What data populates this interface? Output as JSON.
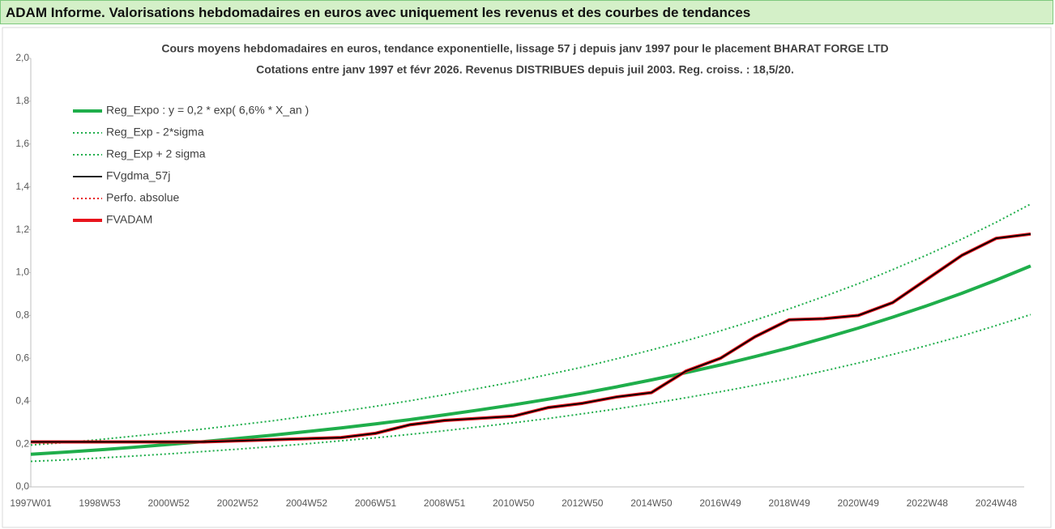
{
  "header": {
    "title": "ADAM Informe. Valorisations hebdomadaires en euros avec uniquement les revenus et des courbes de tendances"
  },
  "chart_data": {
    "type": "line",
    "title": "Cours moyens hebdomadaires en euros, tendance exponentielle, lissage 57 j depuis janv 1997 pour le placement BHARAT FORGE LTD",
    "subtitle": "Cotations entre janv 1997 et févr 2026. Revenus DISTRIBUES depuis juil 2003. Reg. croiss. : 18,5/20.",
    "categories": [
      "1997W01",
      null,
      "1998W53",
      null,
      "2000W52",
      null,
      "2002W52",
      null,
      "2004W52",
      null,
      "2006W51",
      null,
      "2008W51",
      null,
      "2010W50",
      null,
      "2012W50",
      null,
      "2014W50",
      null,
      "2016W49",
      null,
      "2018W49",
      null,
      "2020W49",
      null,
      "2022W48",
      null,
      "2024W48",
      null
    ],
    "ylim": [
      0,
      2
    ],
    "yticks": [
      {
        "value": 0,
        "label": "0,0"
      },
      {
        "value": 0.2,
        "label": "0,2"
      },
      {
        "value": 0.4,
        "label": "0,4"
      },
      {
        "value": 0.6,
        "label": "0,6"
      },
      {
        "value": 0.8,
        "label": "0,8"
      },
      {
        "value": 1,
        "label": "1,0"
      },
      {
        "value": 1.2,
        "label": "1,2"
      },
      {
        "value": 1.4,
        "label": "1,4"
      },
      {
        "value": 1.6,
        "label": "1,6"
      },
      {
        "value": 1.8,
        "label": "1,8"
      },
      {
        "value": 2,
        "label": "2,0"
      }
    ],
    "legend": "top-left",
    "series": [
      {
        "name": "Reg_Expo : y = 0,2 * exp( 6,6% *  X_an )",
        "color": "#1fae4b",
        "line_style": "thick",
        "values": [
          0.152,
          0.162,
          0.173,
          0.185,
          0.198,
          0.211,
          0.226,
          0.241,
          0.258,
          0.275,
          0.294,
          0.314,
          0.336,
          0.359,
          0.383,
          0.409,
          0.437,
          0.467,
          0.499,
          0.533,
          0.569,
          0.608,
          0.649,
          0.694,
          0.741,
          0.792,
          0.846,
          0.903,
          0.965,
          1.031
        ]
      },
      {
        "name": "Reg_Exp - 2*sigma",
        "color": "#1fae4b",
        "line_style": "dotted",
        "values": [
          0.119,
          0.126,
          0.135,
          0.144,
          0.154,
          0.165,
          0.176,
          0.188,
          0.201,
          0.215,
          0.229,
          0.245,
          0.262,
          0.28,
          0.299,
          0.319,
          0.341,
          0.364,
          0.389,
          0.416,
          0.444,
          0.474,
          0.506,
          0.541,
          0.578,
          0.618,
          0.66,
          0.704,
          0.753,
          0.804
        ]
      },
      {
        "name": "Reg_Exp + 2 sigma",
        "color": "#1fae4b",
        "line_style": "dotted",
        "values": [
          0.195,
          0.207,
          0.221,
          0.237,
          0.253,
          0.27,
          0.289,
          0.308,
          0.33,
          0.352,
          0.376,
          0.402,
          0.43,
          0.46,
          0.49,
          0.524,
          0.559,
          0.598,
          0.639,
          0.682,
          0.728,
          0.778,
          0.831,
          0.888,
          0.948,
          1.014,
          1.083,
          1.156,
          1.235,
          1.32
        ]
      },
      {
        "name": "FVgdma_57j",
        "color": "#000000",
        "line_style": "thin",
        "values": [
          0.21,
          0.21,
          0.21,
          0.21,
          0.21,
          0.21,
          0.215,
          0.22,
          0.225,
          0.23,
          0.25,
          0.29,
          0.31,
          0.32,
          0.33,
          0.37,
          0.39,
          0.42,
          0.44,
          0.54,
          0.6,
          0.7,
          0.78,
          0.785,
          0.8,
          0.86,
          0.97,
          1.08,
          1.16,
          1.18
        ]
      },
      {
        "name": "Perfo. absolue",
        "color": "#e8141c",
        "line_style": "dotted",
        "values": [
          0.21,
          0.21,
          0.21,
          0.21,
          0.21,
          0.21,
          0.215,
          0.22,
          0.225,
          0.23,
          0.25,
          0.29,
          0.31,
          0.32,
          0.33,
          0.37,
          0.39,
          0.42,
          0.44,
          0.54,
          0.6,
          0.7,
          0.78,
          0.785,
          0.8,
          0.86,
          0.97,
          1.08,
          1.16,
          1.18
        ]
      },
      {
        "name": "FVADAM",
        "color": "#e8141c",
        "line_style": "thick",
        "values": [
          0.21,
          0.21,
          0.21,
          0.21,
          0.21,
          0.21,
          0.215,
          0.22,
          0.225,
          0.23,
          0.25,
          0.29,
          0.31,
          0.32,
          0.33,
          0.37,
          0.39,
          0.42,
          0.44,
          0.54,
          0.6,
          0.7,
          0.78,
          0.785,
          0.8,
          0.86,
          0.97,
          1.08,
          1.16,
          1.18
        ]
      }
    ]
  }
}
